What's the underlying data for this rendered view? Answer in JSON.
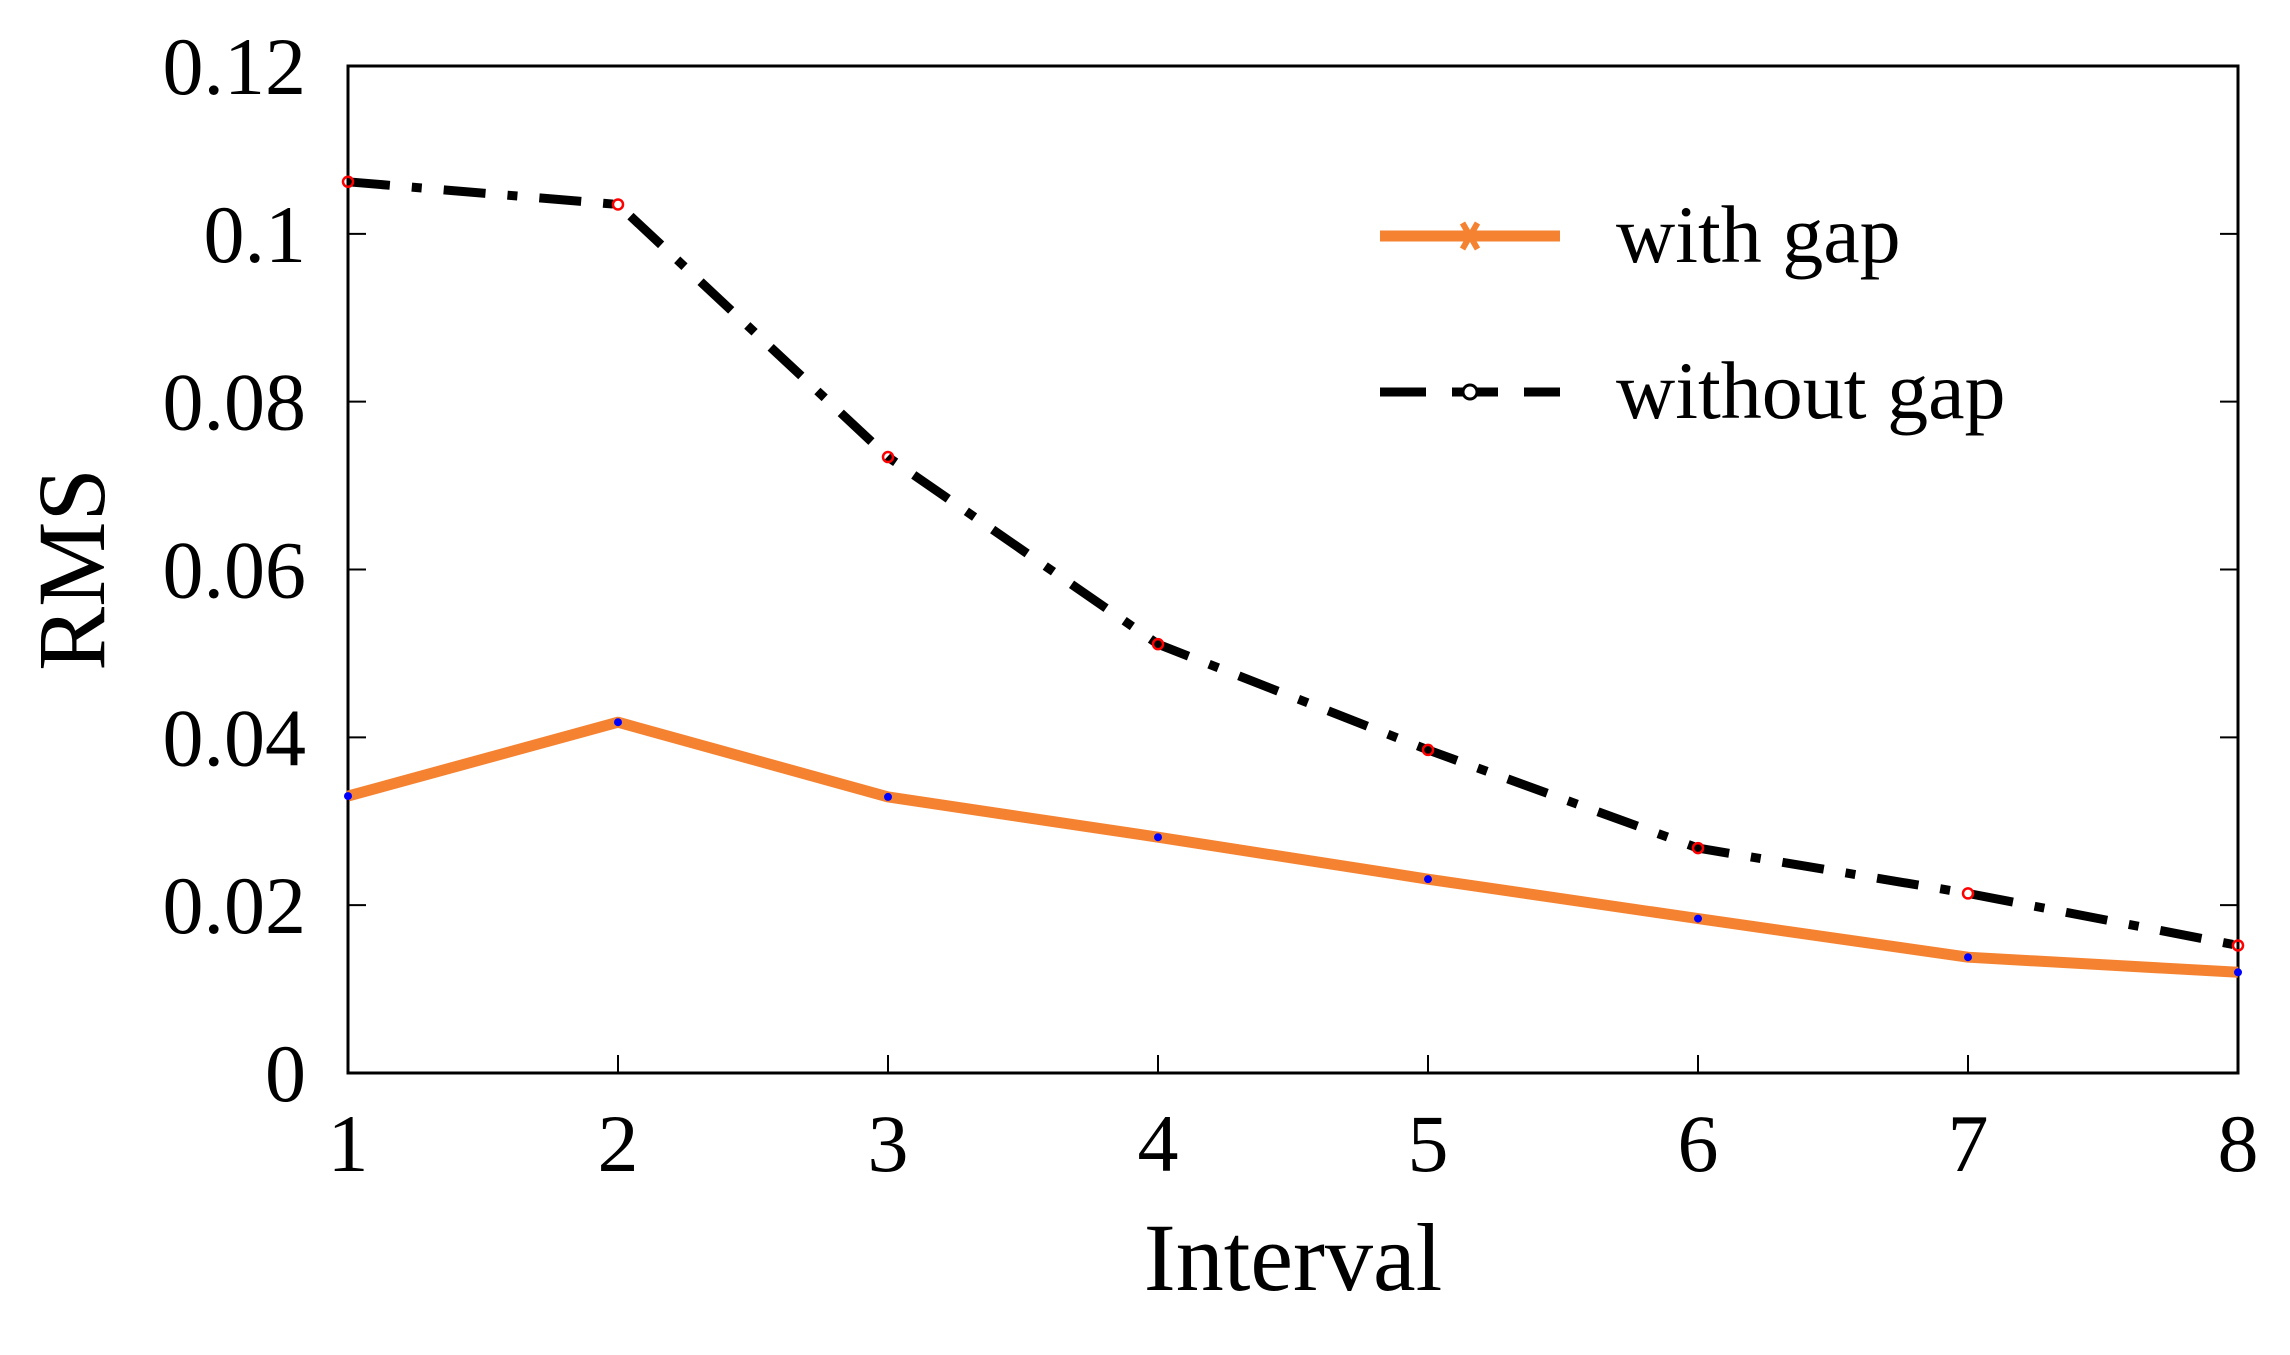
{
  "chart_data": {
    "type": "line",
    "xlabel": "Interval",
    "ylabel": "RMS",
    "xlim": [
      1,
      8
    ],
    "ylim": [
      0,
      0.12
    ],
    "x_ticks": [
      "1",
      "2",
      "3",
      "4",
      "5",
      "6",
      "7",
      "8"
    ],
    "y_ticks": [
      "0",
      "0.02",
      "0.04",
      "0.06",
      "0.08",
      "0.1",
      "0.12"
    ],
    "x": [
      1,
      2,
      3,
      4,
      5,
      6,
      7,
      8
    ],
    "grid": false,
    "legend_position": "top-right",
    "series": [
      {
        "name": "with gap",
        "values": [
          0.033,
          0.0418,
          0.0329,
          0.0281,
          0.0231,
          0.0184,
          0.0138,
          0.012
        ],
        "color": "#f58231",
        "marker_color": "#0000ff",
        "style": "solid"
      },
      {
        "name": "without gap",
        "values": [
          0.1062,
          0.1035,
          0.0734,
          0.0511,
          0.0385,
          0.0268,
          0.0214,
          0.0152
        ],
        "color": "#000000",
        "marker_color": "#ff0000",
        "style": "dash-dot"
      }
    ]
  }
}
